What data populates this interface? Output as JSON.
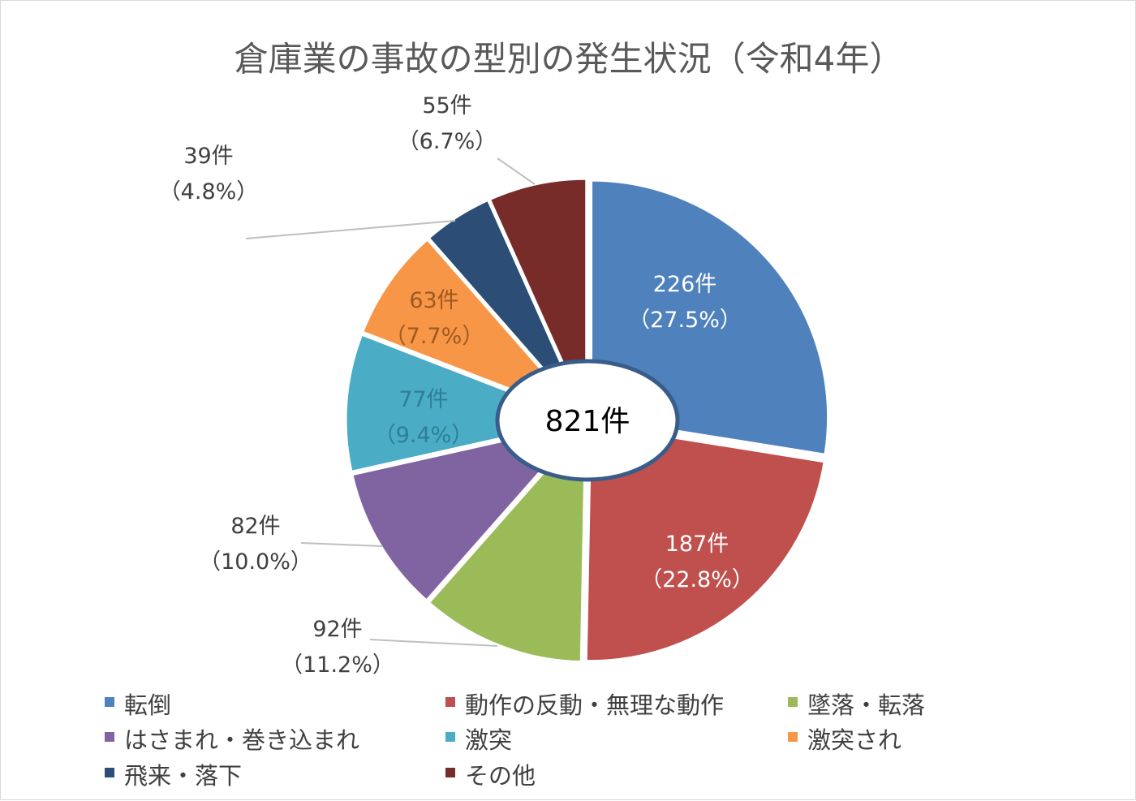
{
  "chart_data": {
    "type": "pie",
    "variant": "donut",
    "title": "倉庫業の事故の型別の発生状況（令和4年）",
    "unit": "件",
    "total_label": "821件",
    "legend_position": "bottom",
    "series": [
      {
        "name": "転倒",
        "value": 226,
        "count_label": "226件",
        "percent_label": "（27.5%）",
        "color": "#4f81bd"
      },
      {
        "name": "動作の反動・無理な動作",
        "value": 187,
        "count_label": "187件",
        "percent_label": "（22.8%）",
        "color": "#c0504d"
      },
      {
        "name": "墜落・転落",
        "value": 92,
        "count_label": "92件",
        "percent_label": "（11.2%）",
        "color": "#9bbb59"
      },
      {
        "name": "はさまれ・巻き込まれ",
        "value": 82,
        "count_label": "82件",
        "percent_label": "（10.0%）",
        "color": "#8064a2"
      },
      {
        "name": "激突",
        "value": 77,
        "count_label": "77件",
        "percent_label": "（9.4%）",
        "color": "#4bacc6"
      },
      {
        "name": "激突され",
        "value": 63,
        "count_label": "63件",
        "percent_label": "（7.7%）",
        "color": "#f79646"
      },
      {
        "name": "飛来・落下",
        "value": 39,
        "count_label": "39件",
        "percent_label": "（4.8%）",
        "color": "#2c4d75"
      },
      {
        "name": "その他",
        "value": 55,
        "count_label": "55件",
        "percent_label": "（6.7%）",
        "color": "#772c2a"
      }
    ]
  }
}
